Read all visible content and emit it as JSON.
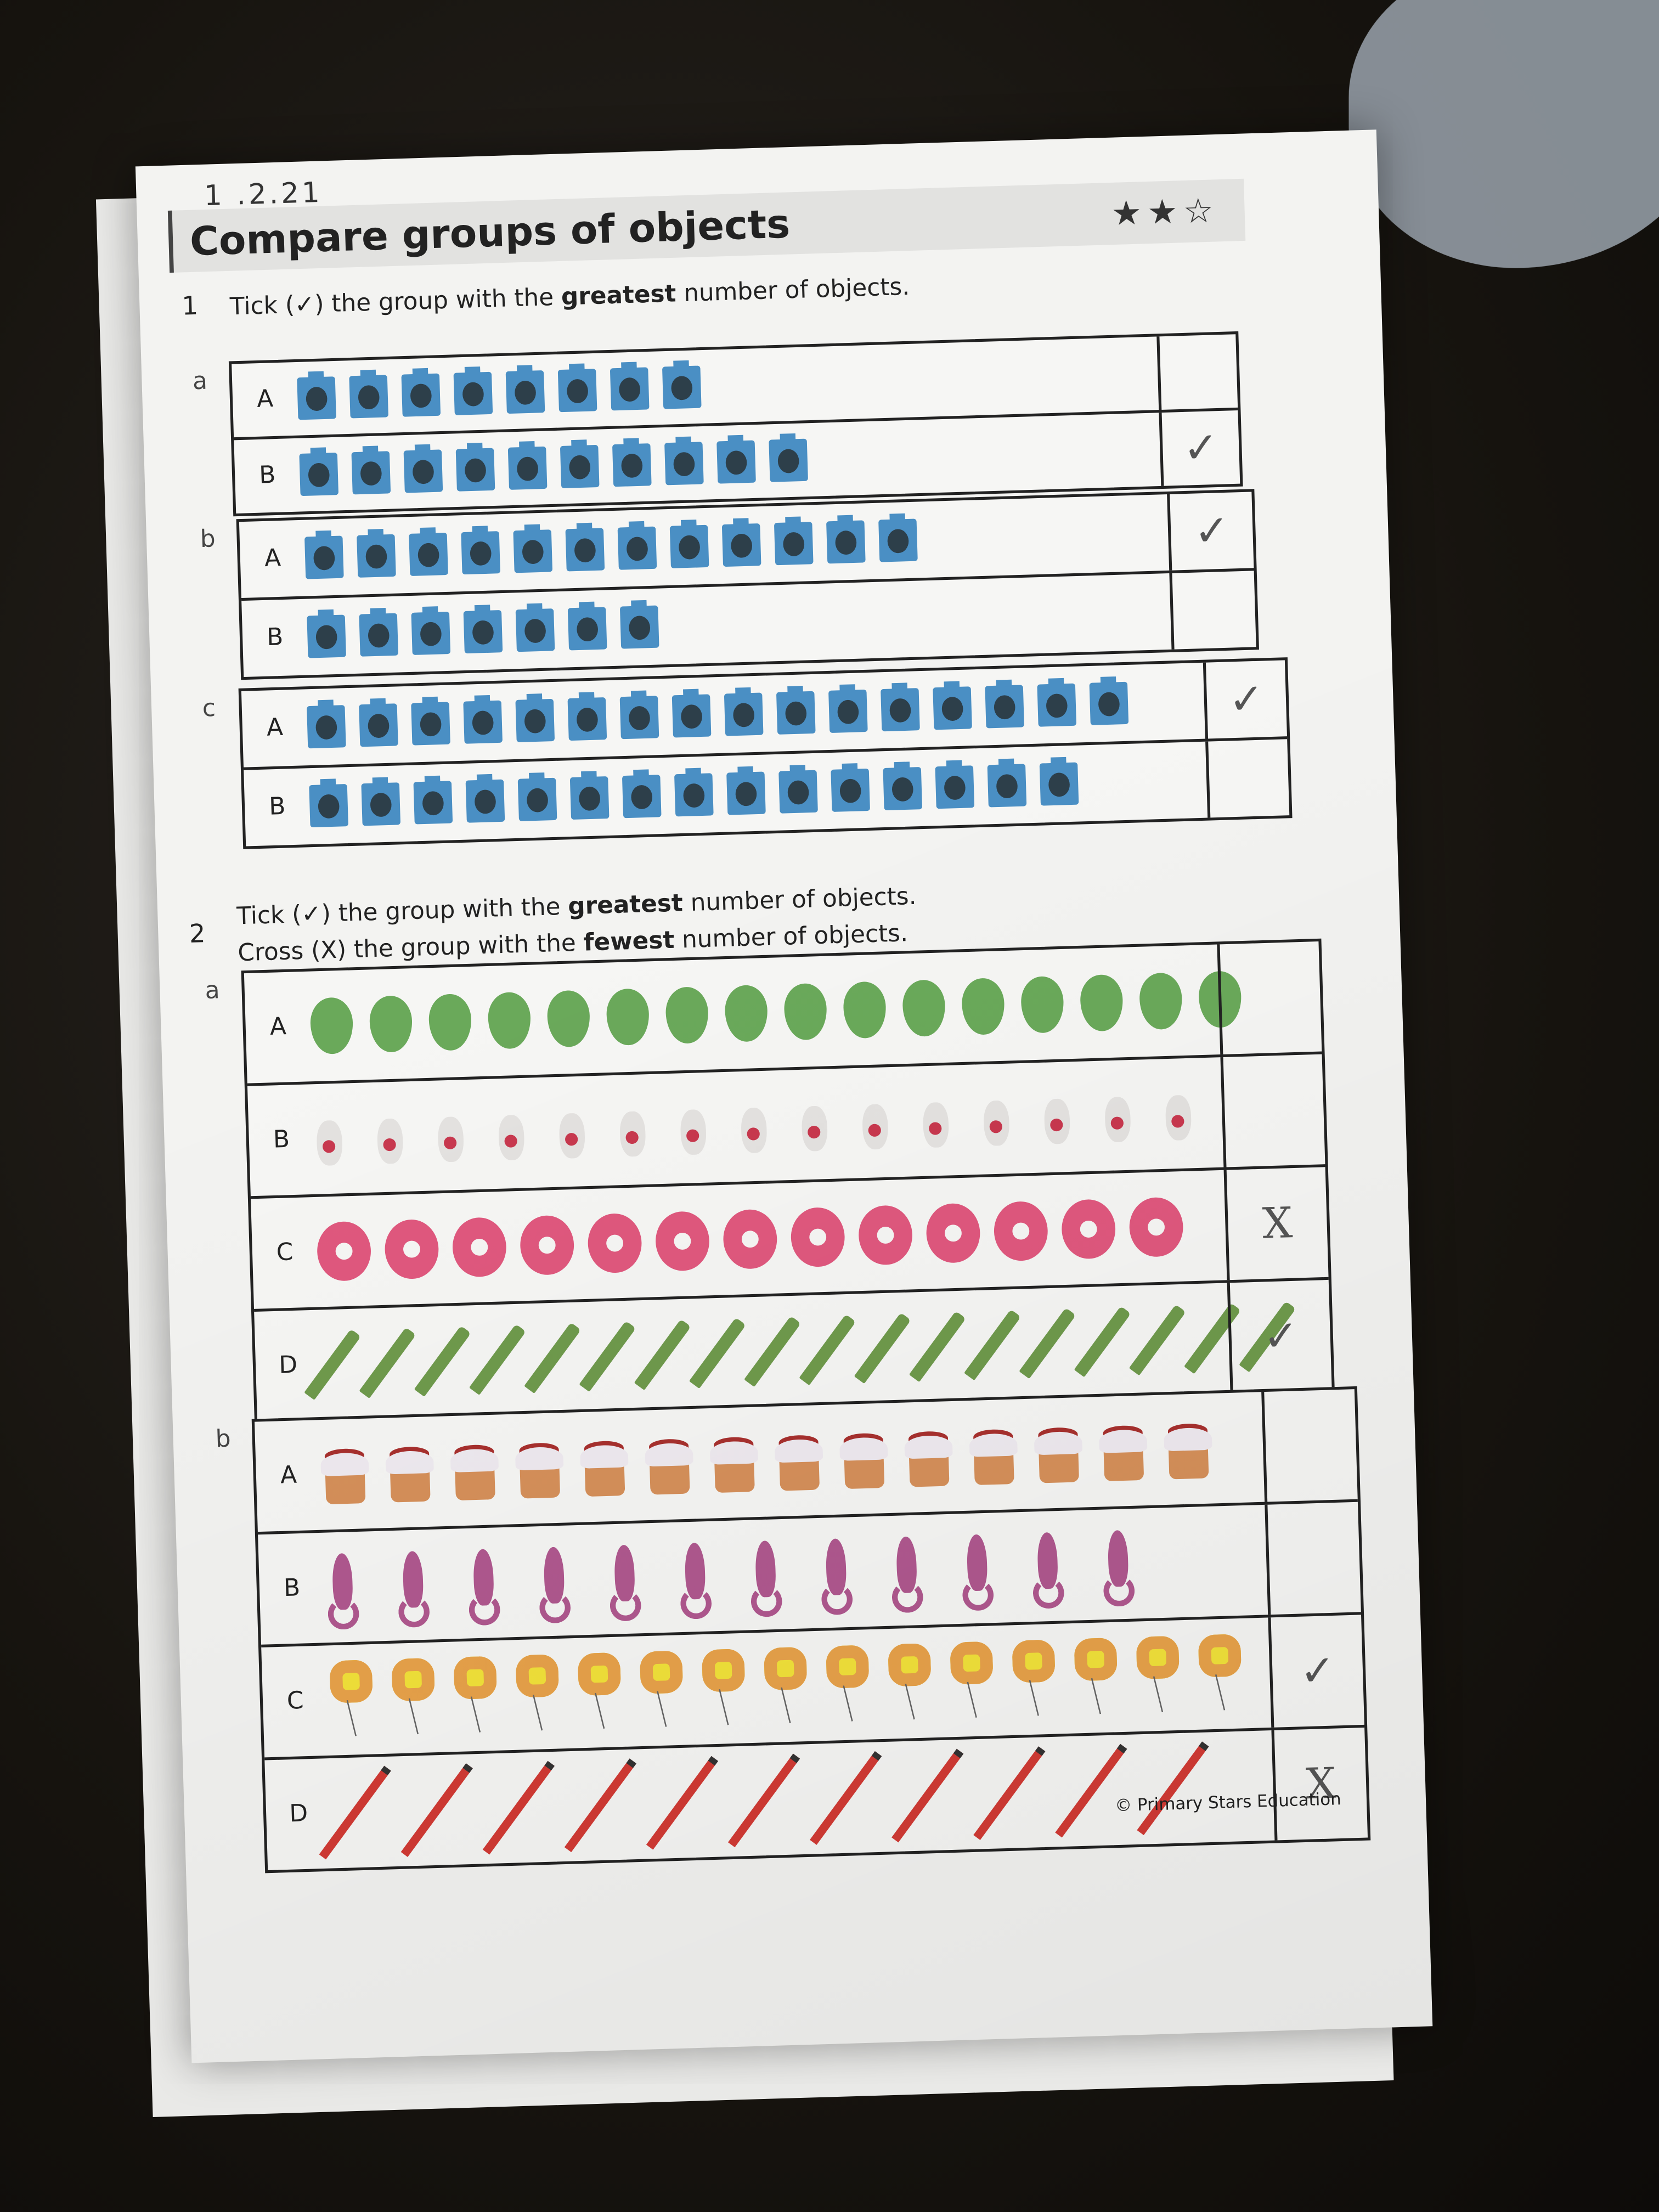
{
  "worksheet": {
    "handwritten_date": "1 .2.21",
    "title": "Compare groups of objects",
    "difficulty_stars": {
      "filled": 2,
      "total": 3,
      "filled_glyph": "★",
      "empty_glyph": "☆"
    },
    "footer": "© Primary Stars Education"
  },
  "q1": {
    "number": "1",
    "instruction": {
      "before": "Tick (✓) the group with the ",
      "bold": "greatest",
      "after": " number of objects."
    },
    "parts": [
      {
        "label": "a",
        "rows": [
          {
            "label": "A",
            "object": "cube",
            "count": 8,
            "mark": ""
          },
          {
            "label": "B",
            "object": "cube",
            "count": 10,
            "mark": "✓"
          }
        ]
      },
      {
        "label": "b",
        "rows": [
          {
            "label": "A",
            "object": "cube",
            "count": 12,
            "mark": "✓"
          },
          {
            "label": "B",
            "object": "cube",
            "count": 7,
            "mark": ""
          }
        ]
      },
      {
        "label": "c",
        "rows": [
          {
            "label": "A",
            "object": "cube",
            "count": 16,
            "mark": "✓"
          },
          {
            "label": "B",
            "object": "cube",
            "count": 15,
            "mark": ""
          }
        ]
      }
    ]
  },
  "q2": {
    "number": "2",
    "instruction_line1": {
      "before": "Tick (✓) the group with the ",
      "bold": "greatest",
      "after": " number of objects."
    },
    "instruction_line2": {
      "before": "Cross (X) the group with the ",
      "bold": "fewest",
      "after": " number of objects."
    },
    "parts": [
      {
        "label": "a",
        "rows": [
          {
            "label": "A",
            "object": "balloon",
            "count": 16,
            "mark": ""
          },
          {
            "label": "B",
            "object": "bunny",
            "count": 15,
            "mark": ""
          },
          {
            "label": "C",
            "object": "donut",
            "count": 13,
            "mark": "X"
          },
          {
            "label": "D",
            "object": "crayon",
            "count": 18,
            "mark": "✓"
          }
        ]
      },
      {
        "label": "b",
        "rows": [
          {
            "label": "A",
            "object": "cupcake",
            "count": 14,
            "mark": ""
          },
          {
            "label": "B",
            "object": "seahorse",
            "count": 12,
            "mark": ""
          },
          {
            "label": "C",
            "object": "flower",
            "count": 15,
            "mark": "✓"
          },
          {
            "label": "D",
            "object": "pencil",
            "count": 11,
            "mark": "X"
          }
        ]
      }
    ]
  }
}
